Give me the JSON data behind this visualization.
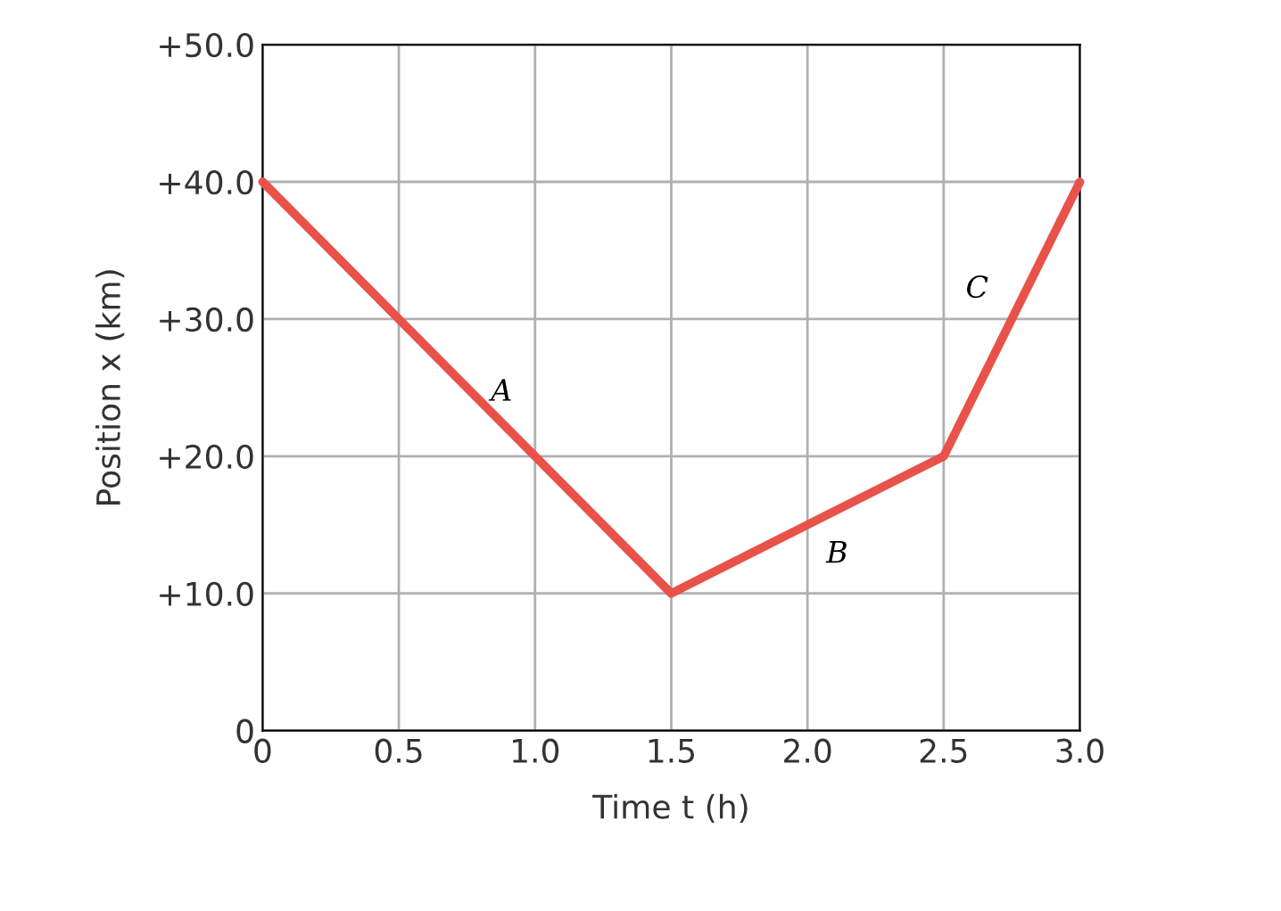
{
  "chart_data": {
    "type": "line",
    "xlabel": "Time t (h)",
    "ylabel": "Position x (km)",
    "x": [
      0,
      1.5,
      2.5,
      3.0
    ],
    "series": [
      {
        "color": "#e8524a",
        "values": [
          40,
          10,
          20,
          40
        ]
      }
    ],
    "xlim": [
      0,
      3.0
    ],
    "xticks": [
      0,
      0.5,
      {
        "value": 1,
        "label": "1.0"
      },
      1.5,
      {
        "value": 2,
        "label": "2.0"
      },
      2.5,
      {
        "value": 3,
        "label": "3.0"
      }
    ],
    "ylim": [
      0,
      50
    ],
    "yticks": [
      0,
      {
        "value": 10,
        "label": "+10.0"
      },
      {
        "value": 20,
        "label": "+20.0"
      },
      {
        "value": 30,
        "label": "+30.0"
      },
      {
        "value": 40,
        "label": "+40.0"
      },
      {
        "value": 50,
        "label": "+50.0"
      }
    ],
    "grid": true,
    "marker": "none",
    "line_style": "solid",
    "annotations": [
      "A",
      "B",
      "C"
    ]
  }
}
